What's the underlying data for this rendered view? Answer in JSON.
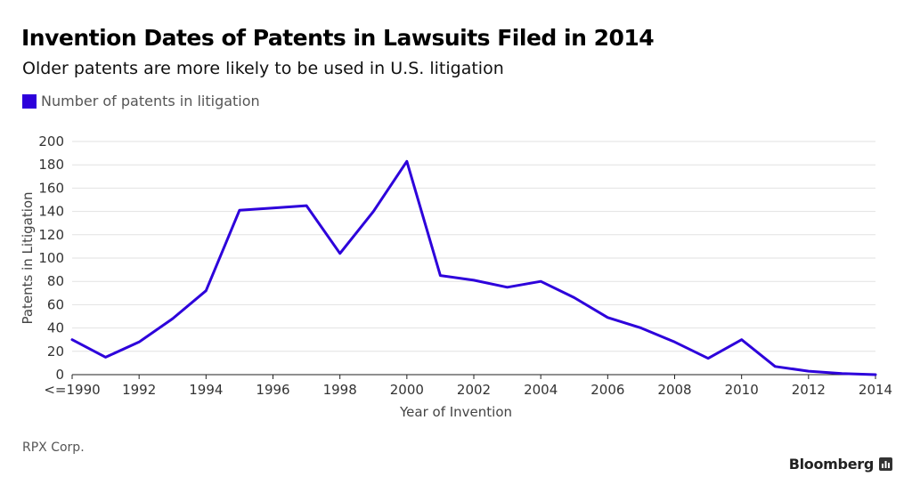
{
  "header": {
    "title": "Invention Dates of Patents in Lawsuits Filed in 2014",
    "subtitle": "Older patents are more likely to be used in U.S. litigation"
  },
  "legend": {
    "label": "Number of patents in litigation",
    "color": "#2d00db"
  },
  "footer": {
    "source": "RPX Corp.",
    "brand": "Bloomberg"
  },
  "chart_data": {
    "type": "line",
    "title": "Invention Dates of Patents in Lawsuits Filed in 2014",
    "subtitle": "Older patents are more likely to be used in U.S. litigation",
    "xlabel": "Year of Invention",
    "ylabel": "Patents in Litigation",
    "x": [
      "<=1990",
      "1991",
      "1992",
      "1993",
      "1994",
      "1995",
      "1996",
      "1997",
      "1998",
      "1999",
      "2000",
      "2001",
      "2002",
      "2003",
      "2004",
      "2005",
      "2006",
      "2007",
      "2008",
      "2009",
      "2010",
      "2011",
      "2012",
      "2013",
      "2014"
    ],
    "x_tick_labels": [
      "<=1990",
      "1992",
      "1994",
      "1996",
      "1998",
      "2000",
      "2002",
      "2004",
      "2006",
      "2008",
      "2010",
      "2012",
      "2014"
    ],
    "series": [
      {
        "name": "Number of patents in litigation",
        "color": "#2d00db",
        "values": [
          30,
          15,
          28,
          48,
          72,
          141,
          143,
          145,
          104,
          140,
          183,
          85,
          81,
          75,
          80,
          66,
          49,
          40,
          28,
          14,
          30,
          7,
          3,
          1,
          0
        ]
      }
    ],
    "ylim": [
      0,
      200
    ],
    "y_ticks": [
      0,
      20,
      40,
      60,
      80,
      100,
      120,
      140,
      160,
      180,
      200
    ],
    "grid": true,
    "legend_position": "top-left"
  }
}
